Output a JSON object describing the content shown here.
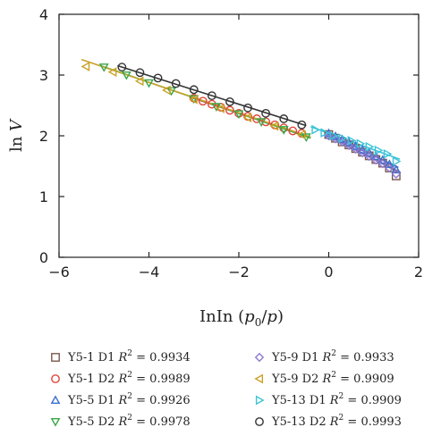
{
  "chart_data": {
    "type": "scatter",
    "xlabel": "lnln (p0/p)",
    "xlabel_parts": {
      "prefix": "InIn (",
      "p0_base": "p",
      "p0_sub": "0",
      "slash": "/",
      "p": "p",
      "suffix": ")"
    },
    "ylabel": "ln V",
    "ylabel_parts": {
      "ln": "ln ",
      "v": "V"
    },
    "xlim": [
      -6,
      2
    ],
    "ylim": [
      0,
      4
    ],
    "x_ticks": [
      -6,
      -4,
      -2,
      0,
      2
    ],
    "y_ticks": [
      0,
      1,
      2,
      3,
      4
    ],
    "x_tick_labels": [
      "−6",
      "−4",
      "−2",
      "0",
      "2"
    ],
    "y_tick_labels": [
      "0",
      "1",
      "2",
      "3",
      "4"
    ],
    "grid": false,
    "legend_placement": "below",
    "series": [
      {
        "name": "Y5-1 D1",
        "r2_label": "R",
        "r2_sup": "2",
        "r2_value": " = 0.9934",
        "marker": "square",
        "color": "#7a5a4a",
        "x": [
          0.0,
          0.15,
          0.3,
          0.45,
          0.6,
          0.75,
          0.9,
          1.05,
          1.2,
          1.35,
          1.5
        ],
        "y": [
          2.02,
          1.96,
          1.9,
          1.85,
          1.79,
          1.73,
          1.67,
          1.61,
          1.55,
          1.47,
          1.34
        ],
        "fit": {
          "slope": -0.37,
          "intercept": 1.99,
          "x_range": [
            -0.1,
            1.55
          ]
        }
      },
      {
        "name": "Y5-1 D2",
        "r2_label": "R",
        "r2_sup": "2",
        "r2_value": " = 0.9989",
        "marker": "circle",
        "color": "#e0453a",
        "x": [
          -3.0,
          -2.8,
          -2.6,
          -2.4,
          -2.2,
          -2.0,
          -1.8,
          -1.6,
          -1.4,
          -1.2,
          -1.0,
          -0.8,
          -0.6
        ],
        "y": [
          2.62,
          2.57,
          2.52,
          2.47,
          2.42,
          2.37,
          2.32,
          2.28,
          2.23,
          2.18,
          2.13,
          2.08,
          2.04
        ],
        "fit": {
          "slope": -0.245,
          "intercept": 1.88,
          "x_range": [
            -3.1,
            -0.5
          ]
        }
      },
      {
        "name": "Y5-5 D1",
        "r2_label": "R",
        "r2_sup": "2",
        "r2_value": " = 0.9926",
        "marker": "triangle-up",
        "color": "#3a6fd0",
        "x": [
          0.0,
          0.15,
          0.3,
          0.45,
          0.6,
          0.75,
          0.9,
          1.05,
          1.2,
          1.35,
          1.5
        ],
        "y": [
          2.04,
          1.99,
          1.94,
          1.89,
          1.83,
          1.77,
          1.72,
          1.66,
          1.6,
          1.53,
          1.44
        ],
        "fit": {
          "slope": -0.35,
          "intercept": 2.02,
          "x_range": [
            -0.1,
            1.55
          ]
        }
      },
      {
        "name": "Y5-5 D2",
        "r2_label": "R",
        "r2_sup": "2",
        "r2_value": " = 0.9978",
        "marker": "triangle-down",
        "color": "#3aa64a",
        "x": [
          -5.0,
          -4.5,
          -4.0,
          -3.5,
          -3.0,
          -2.5,
          -2.0,
          -1.5,
          -1.0,
          -0.5
        ],
        "y": [
          3.13,
          3.0,
          2.87,
          2.74,
          2.61,
          2.48,
          2.36,
          2.23,
          2.1,
          1.98
        ],
        "fit": {
          "slope": -0.255,
          "intercept": 1.86,
          "x_range": [
            -5.1,
            -0.4
          ]
        }
      },
      {
        "name": "Y5-9 D1",
        "r2_label": "R",
        "r2_sup": "2",
        "r2_value": " = 0.9933",
        "marker": "diamond",
        "color": "#8e7ad0",
        "x": [
          0.0,
          0.15,
          0.3,
          0.45,
          0.6,
          0.75,
          0.9,
          1.05,
          1.2,
          1.35,
          1.5
        ],
        "y": [
          2.0,
          1.95,
          1.9,
          1.84,
          1.78,
          1.72,
          1.66,
          1.6,
          1.54,
          1.47,
          1.37
        ],
        "fit": {
          "slope": -0.38,
          "intercept": 1.99,
          "x_range": [
            -0.1,
            1.55
          ]
        }
      },
      {
        "name": "Y5-9 D2",
        "r2_label": "R",
        "r2_sup": "2",
        "r2_value": " = 0.9909",
        "marker": "triangle-left",
        "color": "#c9a227",
        "x": [
          -5.4,
          -4.8,
          -4.2,
          -3.6,
          -3.0,
          -2.4,
          -1.8,
          -1.2,
          -0.6
        ],
        "y": [
          3.14,
          3.05,
          2.9,
          2.75,
          2.6,
          2.45,
          2.3,
          2.16,
          2.02
        ],
        "fit": {
          "slope": -0.25,
          "intercept": 1.88,
          "x_range": [
            -5.5,
            -0.4
          ]
        }
      },
      {
        "name": "Y5-13 D1",
        "r2_label": "R",
        "r2_sup": "2",
        "r2_value": " = 0.9909",
        "marker": "triangle-right",
        "color": "#3cc3d6",
        "x": [
          -0.3,
          -0.1,
          0.1,
          0.3,
          0.5,
          0.7,
          0.9,
          1.1,
          1.3,
          1.5
        ],
        "y": [
          2.1,
          2.05,
          2.0,
          1.96,
          1.92,
          1.87,
          1.82,
          1.76,
          1.7,
          1.58
        ],
        "fit": {
          "slope": -0.27,
          "intercept": 2.04,
          "x_range": [
            -0.4,
            1.58
          ]
        }
      },
      {
        "name": "Y5-13 D2",
        "r2_label": "R",
        "r2_sup": "2",
        "r2_value": " = 0.9993",
        "marker": "circle",
        "color": "#333333",
        "x": [
          -4.6,
          -4.2,
          -3.8,
          -3.4,
          -3.0,
          -2.6,
          -2.2,
          -1.8,
          -1.4,
          -1.0,
          -0.6
        ],
        "y": [
          3.13,
          3.04,
          2.95,
          2.86,
          2.76,
          2.66,
          2.56,
          2.46,
          2.37,
          2.28,
          2.18
        ],
        "fit": {
          "slope": -0.235,
          "intercept": 2.05,
          "x_range": [
            -4.7,
            -0.5
          ]
        }
      }
    ]
  }
}
